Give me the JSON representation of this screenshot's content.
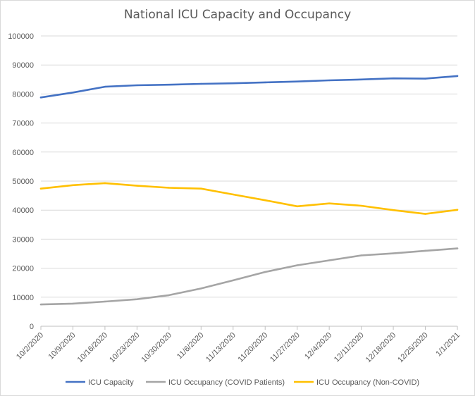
{
  "chart_data": {
    "type": "line",
    "title": "National ICU Capacity and Occupancy",
    "xlabel": "",
    "ylabel": "",
    "categories": [
      "10/2/2020",
      "10/9/2020",
      "10/16/2020",
      "10/23/2020",
      "10/30/2020",
      "11/6/2020",
      "11/13/2020",
      "11/20/2020",
      "11/27/2020",
      "12/4/2020",
      "12/11/2020",
      "12/18/2020",
      "12/25/2020",
      "1/1/2021"
    ],
    "ylim": [
      0,
      100000
    ],
    "yticks": [
      "0",
      "10000",
      "20000",
      "30000",
      "40000",
      "50000",
      "60000",
      "70000",
      "80000",
      "90000",
      "100000"
    ],
    "grid": true,
    "legend": "bottom",
    "series": [
      {
        "name": "ICU Capacity",
        "color": "#4472c4",
        "values": [
          78800,
          80500,
          82500,
          83000,
          83200,
          83500,
          83700,
          84000,
          84300,
          84700,
          85000,
          85400,
          85300,
          86200
        ]
      },
      {
        "name": "ICU Occupancy (COVID Patients)",
        "color": "#a5a5a5",
        "values": [
          7500,
          7800,
          8500,
          9300,
          10700,
          13000,
          15800,
          18700,
          21000,
          22700,
          24400,
          25100,
          26000,
          26800
        ]
      },
      {
        "name": "ICU Occupancy (Non-COVID)",
        "color": "#ffc000",
        "values": [
          47400,
          48600,
          49300,
          48400,
          47700,
          47400,
          45400,
          43400,
          41300,
          42300,
          41500,
          40000,
          38700,
          40100
        ]
      }
    ]
  }
}
